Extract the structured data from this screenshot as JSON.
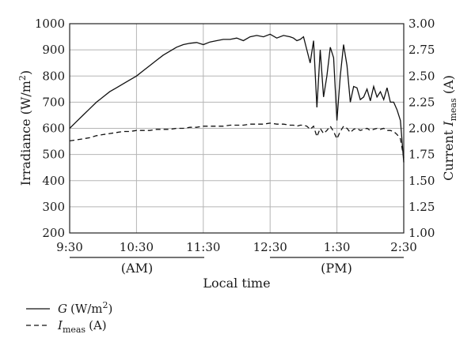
{
  "chart_data": {
    "type": "line",
    "xlabel": "Local time",
    "ylabel_left": "Irradiance (W/m²)",
    "ylabel_right": "Current I_meas (A)",
    "x_ticks": [
      "9:30",
      "10:30",
      "11:30",
      "12:30",
      "1:30",
      "2:30"
    ],
    "x_range_hours": [
      9.5,
      14.5
    ],
    "period_labels": {
      "am": "(AM)",
      "pm": "(PM)"
    },
    "y_left_ticks": [
      200,
      300,
      400,
      500,
      600,
      700,
      800,
      900,
      1000
    ],
    "y_left_range": [
      200,
      1000
    ],
    "y_right_ticks": [
      "1.00",
      "1.25",
      "1.50",
      "1.75",
      "2.00",
      "2.25",
      "2.50",
      "2.75",
      "3.00"
    ],
    "y_right_range": [
      1.0,
      3.0
    ],
    "grid": true,
    "legend_position": "bottom-left",
    "series": [
      {
        "name": "G (W/m²)",
        "axis": "left",
        "style": "solid",
        "x": [
          9.5,
          9.6,
          9.7,
          9.8,
          9.9,
          10.0,
          10.1,
          10.2,
          10.3,
          10.4,
          10.5,
          10.6,
          10.7,
          10.8,
          10.9,
          11.0,
          11.1,
          11.2,
          11.3,
          11.4,
          11.5,
          11.6,
          11.7,
          11.8,
          11.9,
          12.0,
          12.1,
          12.2,
          12.3,
          12.4,
          12.5,
          12.6,
          12.7,
          12.8,
          12.85,
          12.9,
          12.95,
          13.0,
          13.05,
          13.1,
          13.15,
          13.2,
          13.25,
          13.3,
          13.35,
          13.4,
          13.45,
          13.5,
          13.55,
          13.6,
          13.65,
          13.7,
          13.75,
          13.8,
          13.85,
          13.9,
          13.95,
          14.0,
          14.05,
          14.1,
          14.15,
          14.2,
          14.25,
          14.3,
          14.35,
          14.4,
          14.45,
          14.5
        ],
        "values": [
          600,
          625,
          650,
          675,
          700,
          720,
          740,
          755,
          770,
          785,
          800,
          820,
          840,
          860,
          880,
          895,
          910,
          920,
          925,
          928,
          920,
          930,
          935,
          940,
          940,
          945,
          935,
          950,
          955,
          950,
          960,
          945,
          955,
          950,
          945,
          935,
          940,
          950,
          900,
          850,
          935,
          680,
          900,
          720,
          800,
          910,
          870,
          630,
          800,
          920,
          840,
          700,
          760,
          755,
          710,
          720,
          750,
          705,
          760,
          720,
          740,
          710,
          755,
          700,
          700,
          670,
          630,
          470
        ]
      },
      {
        "name": "I_meas (A)",
        "axis": "right",
        "style": "dashed",
        "x": [
          9.5,
          9.6,
          9.7,
          9.8,
          9.9,
          10.0,
          10.1,
          10.2,
          10.3,
          10.4,
          10.5,
          10.6,
          10.7,
          10.8,
          10.9,
          11.0,
          11.1,
          11.2,
          11.3,
          11.4,
          11.5,
          11.6,
          11.7,
          11.8,
          11.9,
          12.0,
          12.1,
          12.2,
          12.3,
          12.4,
          12.5,
          12.6,
          12.7,
          12.8,
          12.85,
          12.9,
          12.95,
          13.0,
          13.05,
          13.1,
          13.15,
          13.2,
          13.25,
          13.3,
          13.35,
          13.4,
          13.45,
          13.5,
          13.55,
          13.6,
          13.65,
          13.7,
          13.75,
          13.8,
          13.85,
          13.9,
          13.95,
          14.0,
          14.05,
          14.1,
          14.15,
          14.2,
          14.25,
          14.3,
          14.35,
          14.4,
          14.45,
          14.5
        ],
        "values": [
          1.88,
          1.89,
          1.9,
          1.91,
          1.93,
          1.94,
          1.95,
          1.96,
          1.97,
          1.97,
          1.98,
          1.98,
          1.98,
          1.99,
          1.99,
          1.99,
          2.0,
          2.0,
          2.01,
          2.01,
          2.02,
          2.02,
          2.02,
          2.02,
          2.03,
          2.03,
          2.03,
          2.04,
          2.04,
          2.04,
          2.05,
          2.04,
          2.04,
          2.03,
          2.03,
          2.02,
          2.03,
          2.03,
          2.02,
          1.99,
          2.02,
          1.92,
          2.0,
          1.95,
          1.98,
          2.02,
          1.97,
          1.9,
          1.97,
          2.02,
          2.0,
          1.96,
          1.99,
          2.0,
          1.98,
          1.99,
          2.0,
          1.98,
          1.99,
          2.0,
          1.99,
          2.0,
          1.98,
          1.98,
          1.97,
          1.94,
          1.9,
          1.72
        ]
      }
    ]
  },
  "legend": {
    "g_symbol": "G",
    "g_unit_open": "(W/m",
    "g_unit_sup": "2",
    "g_unit_close": ")",
    "i_symbol": "I",
    "i_sub": "meas",
    "i_unit": "(A)"
  },
  "axis_text": {
    "left_main": "Irradiance (W/m",
    "left_sup": "2",
    "left_close": ")",
    "right_main": "Current ",
    "right_symbol": "I",
    "right_sub": "meas",
    "right_unit": " (A)"
  }
}
